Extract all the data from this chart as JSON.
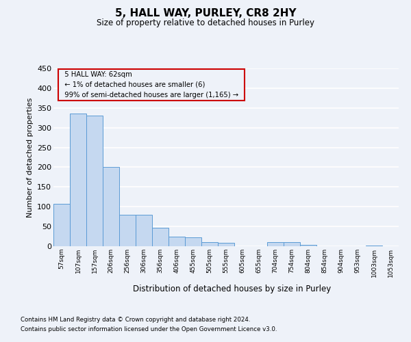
{
  "title": "5, HALL WAY, PURLEY, CR8 2HY",
  "subtitle": "Size of property relative to detached houses in Purley",
  "xlabel": "Distribution of detached houses by size in Purley",
  "ylabel": "Number of detached properties",
  "footnote1": "Contains HM Land Registry data © Crown copyright and database right 2024.",
  "footnote2": "Contains public sector information licensed under the Open Government Licence v3.0.",
  "annotation_title": "5 HALL WAY: 62sqm",
  "annotation_line2": "← 1% of detached houses are smaller (6)",
  "annotation_line3": "99% of semi-detached houses are larger (1,165) →",
  "bar_color": "#c5d8f0",
  "bar_edge_color": "#5b9bd5",
  "annotation_box_edge": "#cc0000",
  "ylim": [
    0,
    450
  ],
  "yticks": [
    0,
    50,
    100,
    150,
    200,
    250,
    300,
    350,
    400,
    450
  ],
  "categories": [
    "57sqm",
    "107sqm",
    "157sqm",
    "206sqm",
    "256sqm",
    "306sqm",
    "356sqm",
    "406sqm",
    "455sqm",
    "505sqm",
    "555sqm",
    "605sqm",
    "655sqm",
    "704sqm",
    "754sqm",
    "804sqm",
    "854sqm",
    "904sqm",
    "953sqm",
    "1003sqm",
    "1053sqm"
  ],
  "values": [
    107,
    335,
    330,
    200,
    80,
    80,
    47,
    25,
    22,
    10,
    8,
    0,
    0,
    10,
    10,
    3,
    0,
    0,
    0,
    2,
    0
  ],
  "background_color": "#eef2f9",
  "grid_color": "#ffffff"
}
